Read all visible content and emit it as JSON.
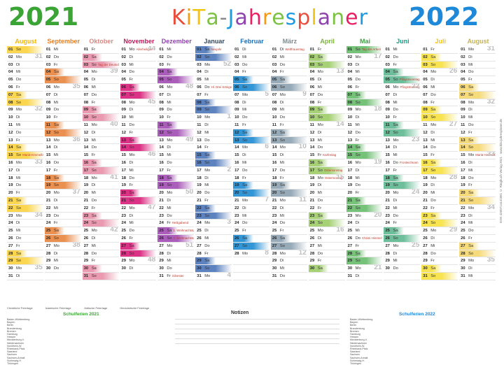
{
  "header": {
    "year_left": "2021",
    "year_right": "2022",
    "title_letters": [
      "K",
      "i",
      "T",
      "a",
      "-",
      "J",
      "a",
      "h",
      "r",
      "e",
      "s",
      "p",
      "l",
      "a",
      "n",
      "e",
      "r"
    ],
    "title_colors": [
      "#e94e3d",
      "#f39c12",
      "#f1c40f",
      "#7cc242",
      "#888888",
      "#1e9be0",
      "#8e44ad",
      "#e91e63",
      "#f39c12",
      "#7cc242",
      "#1e9be0",
      "#e94e3d",
      "#f1c40f",
      "#8e44ad",
      "#7cc242",
      "#e91e63",
      "#1e9be0"
    ]
  },
  "weekdays": [
    "Mo",
    "Di",
    "Mi",
    "Do",
    "Fr",
    "Sa",
    "So"
  ],
  "months": [
    {
      "name": "August",
      "color": "#f2b705",
      "bar": "#fbd23c",
      "start": 6,
      "days": 31,
      "kw": [
        31,
        32,
        33,
        34,
        35
      ],
      "kwstart": 31
    },
    {
      "name": "September",
      "color": "#e67e22",
      "bar": "#e8843c",
      "start": 2,
      "days": 30,
      "kwstart": 35
    },
    {
      "name": "Oktober",
      "color": "#d98880",
      "bar": "#e78fa8",
      "start": 4,
      "days": 31,
      "kwstart": 39
    },
    {
      "name": "November",
      "color": "#c2185b",
      "bar": "#d81b78",
      "start": 0,
      "days": 30,
      "kwstart": 44
    },
    {
      "name": "Dezember",
      "color": "#8e44ad",
      "bar": "#a04bb2",
      "start": 2,
      "days": 31,
      "kwstart": 48
    },
    {
      "name": "Januar",
      "color": "#34495e",
      "bar": "#4a74b8",
      "start": 5,
      "days": 31,
      "kwstart": 52
    },
    {
      "name": "Februar",
      "color": "#1e6fb8",
      "bar": "#1b8ad2",
      "start": 1,
      "days": 28,
      "kwstart": 5
    },
    {
      "name": "März",
      "color": "#7f8c8d",
      "bar": "#8aa0b0",
      "start": 1,
      "days": 31,
      "kwstart": 9
    },
    {
      "name": "April",
      "color": "#7cb342",
      "bar": "#9ccc65",
      "start": 4,
      "days": 30,
      "kwstart": 13
    },
    {
      "name": "Mai",
      "color": "#43a047",
      "bar": "#66bb6a",
      "start": 6,
      "days": 31,
      "kwstart": 17
    },
    {
      "name": "Juni",
      "color": "#16a085",
      "bar": "#5cb88f",
      "start": 2,
      "days": 30,
      "kwstart": 22
    },
    {
      "name": "Juli",
      "color": "#f1c40f",
      "bar": "#f7e03c",
      "start": 4,
      "days": 31,
      "kwstart": 26
    },
    {
      "name": "August",
      "color": "#c5b15a",
      "bar": "#f5d76e",
      "start": 0,
      "days": 31,
      "kwstart": 31
    }
  ],
  "holidays": [
    {
      "m": 2,
      "d": 3,
      "text": "Tag der Deutschen Einheit"
    },
    {
      "m": 3,
      "d": 1,
      "text": "Allerheiligen"
    },
    {
      "m": 4,
      "d": 24,
      "text": "Heiligabend"
    },
    {
      "m": 4,
      "d": 25,
      "text": "1. Weihnachtstag"
    },
    {
      "m": 4,
      "d": 26,
      "text": "2. Weihnachtstag"
    },
    {
      "m": 4,
      "d": 31,
      "text": "Silvester"
    },
    {
      "m": 5,
      "d": 1,
      "text": "Neujahr"
    },
    {
      "m": 5,
      "d": 6,
      "text": "Hl. Drei Könige"
    },
    {
      "m": 7,
      "d": 1,
      "text": "Weltfrauentag"
    },
    {
      "m": 8,
      "d": 15,
      "text": "Karfreitag"
    },
    {
      "m": 8,
      "d": 17,
      "text": "Ostersonntag"
    },
    {
      "m": 8,
      "d": 18,
      "text": "Ostermontag"
    },
    {
      "m": 9,
      "d": 1,
      "text": "Tag der Arbeit"
    },
    {
      "m": 9,
      "d": 26,
      "text": "Christi Himmelfahrt"
    },
    {
      "m": 10,
      "d": 5,
      "text": "Pfingstsonntag"
    },
    {
      "m": 10,
      "d": 6,
      "text": "Pfingstmontag"
    },
    {
      "m": 10,
      "d": 16,
      "text": "Fronleichnam"
    },
    {
      "m": 0,
      "d": 15,
      "text": "Mariä Himmelfahrt"
    },
    {
      "m": 12,
      "d": 15,
      "text": "Mariä Himmelfahrt"
    }
  ],
  "footer": {
    "left_title": "Schulferien 2021",
    "right_title": "Schulferien 2022",
    "notes_title": "Notizen",
    "legend": [
      "Christliche Feiertage",
      "Islamische Feiertage",
      "Jüdische Feiertage",
      "Hinduistische Feiertage"
    ],
    "states": [
      "Baden-Württemberg",
      "Bayern",
      "Berlin",
      "Brandenburg",
      "Bremen",
      "Hamburg",
      "Hessen",
      "Mecklenburg-V.",
      "Niedersachsen",
      "Nordrhein-W.",
      "Rheinland-Pfalz",
      "Saarland",
      "Sachsen",
      "Sachsen-Anhalt",
      "Schleswig-H.",
      "Thüringen"
    ],
    "side_text": "EAN 4260714441881 © Ringbuch Verlag 2021 · www.kita-jahresplaner.de"
  }
}
